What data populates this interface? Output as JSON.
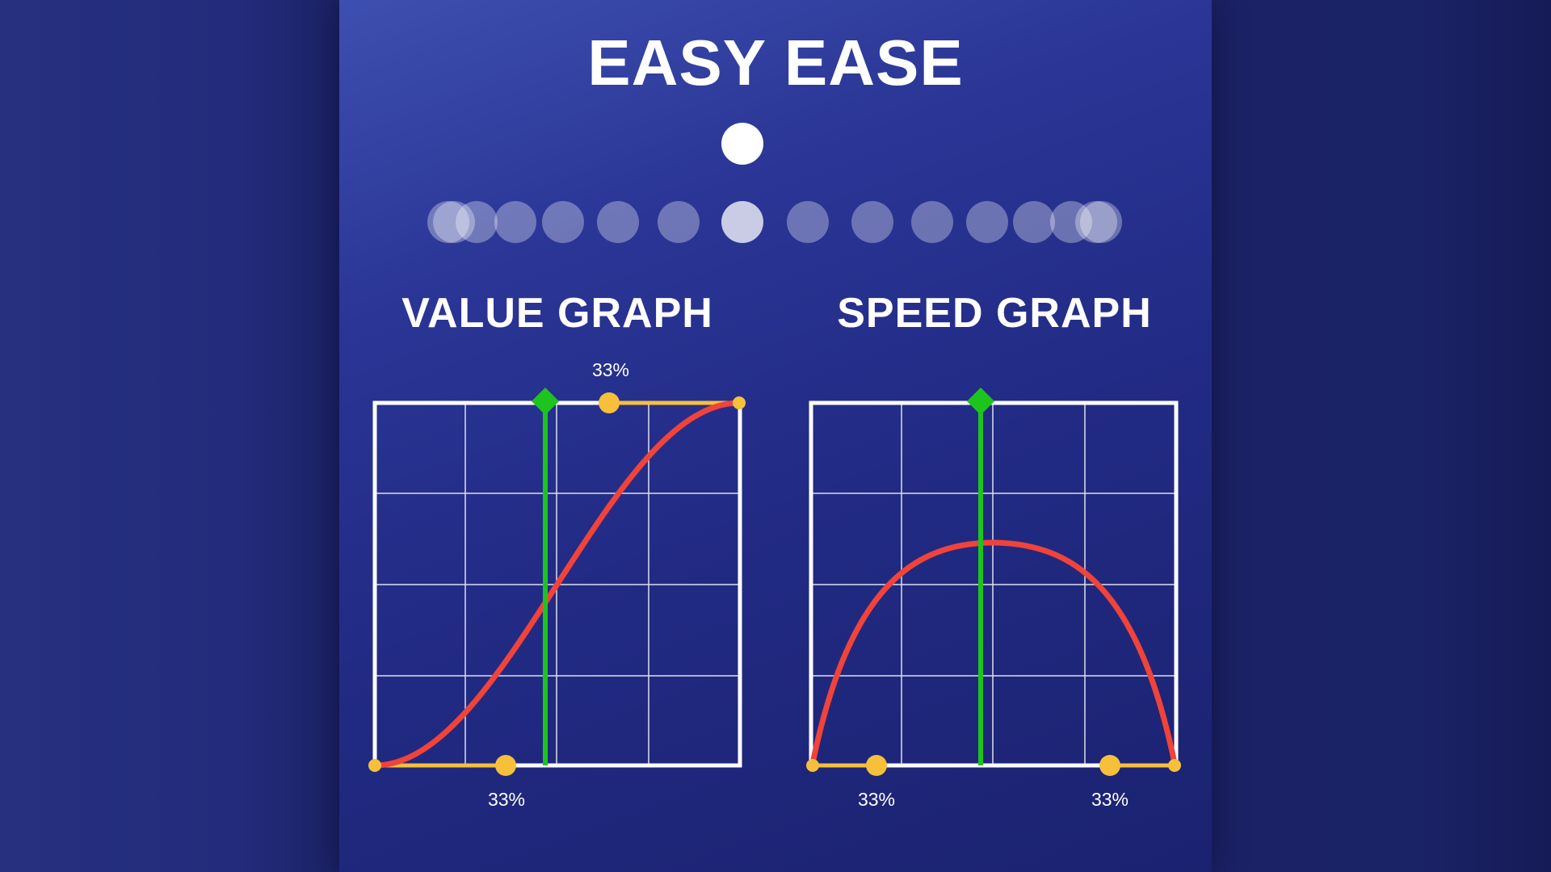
{
  "title": "EASY EASE",
  "value_graph": {
    "title": "VALUE GRAPH",
    "handle_top_label": "33%",
    "handle_bottom_label": "33%",
    "curve_color": "#f0433a",
    "handle_color": "#f7c03a",
    "marker_color": "#1ec41e"
  },
  "speed_graph": {
    "title": "SPEED GRAPH",
    "handle_left_label": "33%",
    "handle_right_label": "33%",
    "curve_color": "#f0433a",
    "handle_color": "#f7c03a",
    "marker_color": "#1ec41e"
  },
  "colors": {
    "panel": "#2a3595",
    "grid": "#ffffff"
  }
}
